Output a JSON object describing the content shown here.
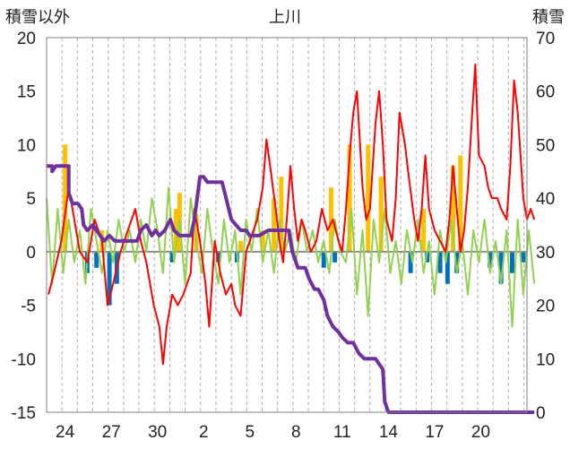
{
  "chart_data": {
    "type": "line",
    "title": "上川",
    "left_axis": {
      "label": "積雪以外",
      "ylim": [
        -15,
        20
      ],
      "ticks": [
        -15,
        -10,
        -5,
        0,
        5,
        10,
        15,
        20
      ]
    },
    "right_axis": {
      "label": "積雪",
      "ylim": [
        0,
        70
      ],
      "ticks": [
        0,
        10,
        20,
        30,
        40,
        50,
        60,
        70
      ]
    },
    "x_axis": {
      "range": [
        0,
        26
      ],
      "tick_positions": [
        1,
        3.5,
        6,
        8.5,
        11,
        13.5,
        16,
        18.5,
        21,
        23.5,
        26
      ],
      "tick_labels": [
        "24",
        "27",
        "30",
        "2",
        "5",
        "8",
        "11",
        "14",
        "17",
        "20",
        ""
      ],
      "minor_step": 0.8333
    },
    "grid": "vertical-dashed",
    "colors": {
      "precip_yellow": "#ffc000",
      "precip_blue": "#0070c0",
      "temp_max": "#ff0000",
      "temp_mean": "#92d050",
      "snow_depth": "#7030a0"
    },
    "series": [
      {
        "axis": "left",
        "style": "bars-positive",
        "values": [
          [
            1,
            10
          ],
          [
            3,
            2
          ],
          [
            7,
            4
          ],
          [
            7.2,
            5.5
          ],
          [
            8.1,
            3.5
          ],
          [
            10.5,
            1
          ],
          [
            11.7,
            2
          ],
          [
            12.3,
            5
          ],
          [
            12.7,
            7
          ],
          [
            15.4,
            6
          ],
          [
            16.4,
            10
          ],
          [
            17.4,
            10
          ],
          [
            18.1,
            7
          ],
          [
            20.4,
            4
          ],
          [
            22,
            8
          ],
          [
            22.4,
            9
          ]
        ]
      },
      {
        "axis": "left",
        "style": "bars-negative",
        "values": [
          [
            2.2,
            -2
          ],
          [
            2.7,
            -1.5
          ],
          [
            3.4,
            -5
          ],
          [
            3.8,
            -3
          ],
          [
            6.8,
            -1
          ],
          [
            9.3,
            -1
          ],
          [
            10.3,
            -1
          ],
          [
            15,
            -1.5
          ],
          [
            15.6,
            -1
          ],
          [
            19.7,
            -2
          ],
          [
            20.6,
            -1
          ],
          [
            21.3,
            -2
          ],
          [
            21.7,
            -3
          ],
          [
            22.2,
            -2
          ],
          [
            24,
            -1.5
          ],
          [
            24.6,
            -3
          ],
          [
            25.2,
            -2
          ],
          [
            25.8,
            -1
          ]
        ]
      },
      {
        "axis": "left",
        "style": "line",
        "color": "temp_max",
        "values": [
          [
            0.1,
            -4
          ],
          [
            0.4,
            -2
          ],
          [
            0.8,
            1
          ],
          [
            1.2,
            6
          ],
          [
            1.5,
            3
          ],
          [
            1.8,
            0
          ],
          [
            2.2,
            -1
          ],
          [
            2.6,
            3
          ],
          [
            3,
            1
          ],
          [
            3.3,
            -5
          ],
          [
            3.6,
            -3
          ],
          [
            4,
            0
          ],
          [
            4.4,
            2
          ],
          [
            4.8,
            4
          ],
          [
            5.1,
            1
          ],
          [
            5.4,
            -1
          ],
          [
            5.8,
            -5
          ],
          [
            6.1,
            -7
          ],
          [
            6.3,
            -10.5
          ],
          [
            6.5,
            -7
          ],
          [
            6.8,
            -4
          ],
          [
            7.1,
            -5
          ],
          [
            7.4,
            -4
          ],
          [
            7.8,
            -2
          ],
          [
            8,
            4
          ],
          [
            8.3,
            1
          ],
          [
            8.6,
            -3
          ],
          [
            8.8,
            -7
          ],
          [
            9.1,
            1
          ],
          [
            9.4,
            -2
          ],
          [
            9.7,
            -4
          ],
          [
            10,
            -3
          ],
          [
            10.2,
            -5
          ],
          [
            10.5,
            -6
          ],
          [
            10.8,
            0
          ],
          [
            11,
            1
          ],
          [
            11.4,
            3
          ],
          [
            11.7,
            6
          ],
          [
            11.9,
            10.5
          ],
          [
            12.1,
            8
          ],
          [
            12.4,
            4
          ],
          [
            12.6,
            1
          ],
          [
            12.8,
            -1
          ],
          [
            13,
            3
          ],
          [
            13.2,
            8
          ],
          [
            13.4,
            4
          ],
          [
            13.6,
            1
          ],
          [
            13.8,
            3
          ],
          [
            14,
            2
          ],
          [
            14.3,
            0
          ],
          [
            14.6,
            1
          ],
          [
            14.9,
            4
          ],
          [
            15.2,
            2
          ],
          [
            15.5,
            3
          ],
          [
            15.8,
            1
          ],
          [
            16,
            0
          ],
          [
            16.2,
            4
          ],
          [
            16.4,
            9
          ],
          [
            16.6,
            13
          ],
          [
            16.8,
            15
          ],
          [
            17.1,
            6
          ],
          [
            17.3,
            3
          ],
          [
            17.5,
            4
          ],
          [
            17.8,
            12
          ],
          [
            18,
            15
          ],
          [
            18.2,
            10
          ],
          [
            18.4,
            3
          ],
          [
            18.7,
            1
          ],
          [
            18.9,
            5
          ],
          [
            19.1,
            13
          ],
          [
            19.4,
            10
          ],
          [
            19.6,
            7
          ],
          [
            19.9,
            3
          ],
          [
            20.1,
            1
          ],
          [
            20.3,
            4
          ],
          [
            20.5,
            9
          ],
          [
            20.7,
            4
          ],
          [
            21,
            2
          ],
          [
            21.3,
            1
          ],
          [
            21.6,
            0
          ],
          [
            21.8,
            3
          ],
          [
            22,
            8
          ],
          [
            22.2,
            4
          ],
          [
            22.4,
            0
          ],
          [
            22.6,
            2
          ],
          [
            22.8,
            6
          ],
          [
            23,
            12
          ],
          [
            23.2,
            17.5
          ],
          [
            23.4,
            9
          ],
          [
            23.7,
            8
          ],
          [
            23.9,
            6
          ],
          [
            24.1,
            5
          ],
          [
            24.4,
            5
          ],
          [
            24.6,
            4
          ],
          [
            24.9,
            3
          ],
          [
            25.1,
            8
          ],
          [
            25.3,
            16
          ],
          [
            25.5,
            13
          ],
          [
            25.8,
            5
          ],
          [
            26,
            3
          ],
          [
            26.2,
            4
          ],
          [
            26.4,
            3
          ]
        ]
      },
      {
        "axis": "left",
        "style": "line",
        "color": "temp_mean",
        "values": [
          [
            0,
            5
          ],
          [
            0.3,
            -3
          ],
          [
            0.6,
            4
          ],
          [
            0.9,
            -2
          ],
          [
            1.2,
            3
          ],
          [
            1.5,
            -1
          ],
          [
            1.8,
            2
          ],
          [
            2.1,
            -3
          ],
          [
            2.4,
            4
          ],
          [
            2.7,
            1
          ],
          [
            3,
            -2
          ],
          [
            3.3,
            2
          ],
          [
            3.6,
            -1
          ],
          [
            3.9,
            3
          ],
          [
            4.2,
            0
          ],
          [
            4.5,
            2
          ],
          [
            4.8,
            -1
          ],
          [
            5.1,
            3
          ],
          [
            5.4,
            0
          ],
          [
            5.7,
            5
          ],
          [
            6,
            2
          ],
          [
            6.3,
            -2
          ],
          [
            6.6,
            6
          ],
          [
            6.9,
            -1
          ],
          [
            7.2,
            3
          ],
          [
            7.5,
            -3
          ],
          [
            7.8,
            5
          ],
          [
            8.1,
            1
          ],
          [
            8.4,
            -2
          ],
          [
            8.7,
            4
          ],
          [
            9,
            0
          ],
          [
            9.3,
            -3
          ],
          [
            9.6,
            3
          ],
          [
            9.9,
            -1
          ],
          [
            10.2,
            2
          ],
          [
            10.5,
            -4
          ],
          [
            10.8,
            3
          ],
          [
            11.1,
            0
          ],
          [
            11.4,
            4
          ],
          [
            11.7,
            -1
          ],
          [
            12,
            2
          ],
          [
            12.3,
            -2
          ],
          [
            12.6,
            3
          ],
          [
            12.9,
            0
          ],
          [
            13.2,
            2
          ],
          [
            13.5,
            -1
          ],
          [
            13.8,
            3
          ],
          [
            14.1,
            0
          ],
          [
            14.4,
            2
          ],
          [
            14.7,
            -1
          ],
          [
            15,
            1
          ],
          [
            15.3,
            -2
          ],
          [
            15.6,
            3
          ],
          [
            15.9,
            0
          ],
          [
            16.2,
            -1
          ],
          [
            16.5,
            4
          ],
          [
            16.8,
            -4
          ],
          [
            17.1,
            2
          ],
          [
            17.4,
            -6
          ],
          [
            17.7,
            3
          ],
          [
            18,
            -1
          ],
          [
            18.3,
            4
          ],
          [
            18.6,
            -2
          ],
          [
            18.9,
            1
          ],
          [
            19.2,
            -3
          ],
          [
            19.5,
            2
          ],
          [
            19.8,
            -1
          ],
          [
            20.1,
            3
          ],
          [
            20.4,
            -2
          ],
          [
            20.7,
            1
          ],
          [
            21,
            -4
          ],
          [
            21.3,
            2
          ],
          [
            21.6,
            -1
          ],
          [
            21.9,
            3
          ],
          [
            22.2,
            -2
          ],
          [
            22.5,
            1
          ],
          [
            22.8,
            -4
          ],
          [
            23.1,
            2
          ],
          [
            23.4,
            -1
          ],
          [
            23.7,
            3
          ],
          [
            24,
            -2
          ],
          [
            24.3,
            1
          ],
          [
            24.6,
            -3
          ],
          [
            24.9,
            2
          ],
          [
            25.2,
            -7
          ],
          [
            25.5,
            3
          ],
          [
            25.8,
            -4
          ],
          [
            26.1,
            2
          ],
          [
            26.4,
            -3
          ]
        ]
      },
      {
        "axis": "right",
        "style": "line",
        "color": "snow_depth",
        "values": [
          [
            0,
            46
          ],
          [
            0.3,
            46
          ],
          [
            0.3,
            45
          ],
          [
            0.5,
            46
          ],
          [
            0.8,
            46
          ],
          [
            1,
            46
          ],
          [
            1.2,
            46
          ],
          [
            1.2,
            41
          ],
          [
            1.4,
            39
          ],
          [
            1.7,
            39
          ],
          [
            1.9,
            38
          ],
          [
            2,
            35
          ],
          [
            2.2,
            34
          ],
          [
            2.5,
            35
          ],
          [
            2.7,
            34
          ],
          [
            2.9,
            33
          ],
          [
            3.1,
            32
          ],
          [
            3.4,
            33
          ],
          [
            3.7,
            32
          ],
          [
            4,
            32
          ],
          [
            4.3,
            32
          ],
          [
            4.6,
            32
          ],
          [
            4.9,
            32
          ],
          [
            5.1,
            34
          ],
          [
            5.4,
            35
          ],
          [
            5.7,
            33
          ],
          [
            5.9,
            34
          ],
          [
            6.1,
            33
          ],
          [
            6.4,
            34
          ],
          [
            6.7,
            36
          ],
          [
            6.9,
            34
          ],
          [
            7.2,
            33
          ],
          [
            7.5,
            33
          ],
          [
            7.8,
            33
          ],
          [
            8,
            36
          ],
          [
            8.3,
            44
          ],
          [
            8.5,
            44
          ],
          [
            8.7,
            43
          ],
          [
            8.9,
            43
          ],
          [
            9.1,
            43
          ],
          [
            9.3,
            43
          ],
          [
            9.5,
            43
          ],
          [
            10,
            36
          ],
          [
            10.5,
            34
          ],
          [
            10.8,
            34
          ],
          [
            11,
            33
          ],
          [
            11.5,
            33
          ],
          [
            12,
            34
          ],
          [
            12.5,
            34
          ],
          [
            13,
            34
          ],
          [
            13.1,
            34
          ],
          [
            13.3,
            30
          ],
          [
            13.6,
            27
          ],
          [
            14,
            27
          ],
          [
            14.2,
            25
          ],
          [
            14.5,
            23
          ],
          [
            14.7,
            23
          ],
          [
            15,
            21
          ],
          [
            15.2,
            18
          ],
          [
            15.5,
            16
          ],
          [
            15.8,
            15
          ],
          [
            16,
            14
          ],
          [
            16.3,
            13
          ],
          [
            16.6,
            13
          ],
          [
            16.9,
            11
          ],
          [
            17.2,
            10
          ],
          [
            17.5,
            10
          ],
          [
            17.8,
            10
          ],
          [
            18,
            9
          ],
          [
            18.2,
            8
          ],
          [
            18.3,
            2
          ],
          [
            18.5,
            0
          ],
          [
            19,
            0
          ],
          [
            20,
            0
          ],
          [
            22,
            0
          ],
          [
            24,
            0
          ],
          [
            26,
            0
          ],
          [
            26.4,
            0
          ]
        ]
      }
    ]
  }
}
